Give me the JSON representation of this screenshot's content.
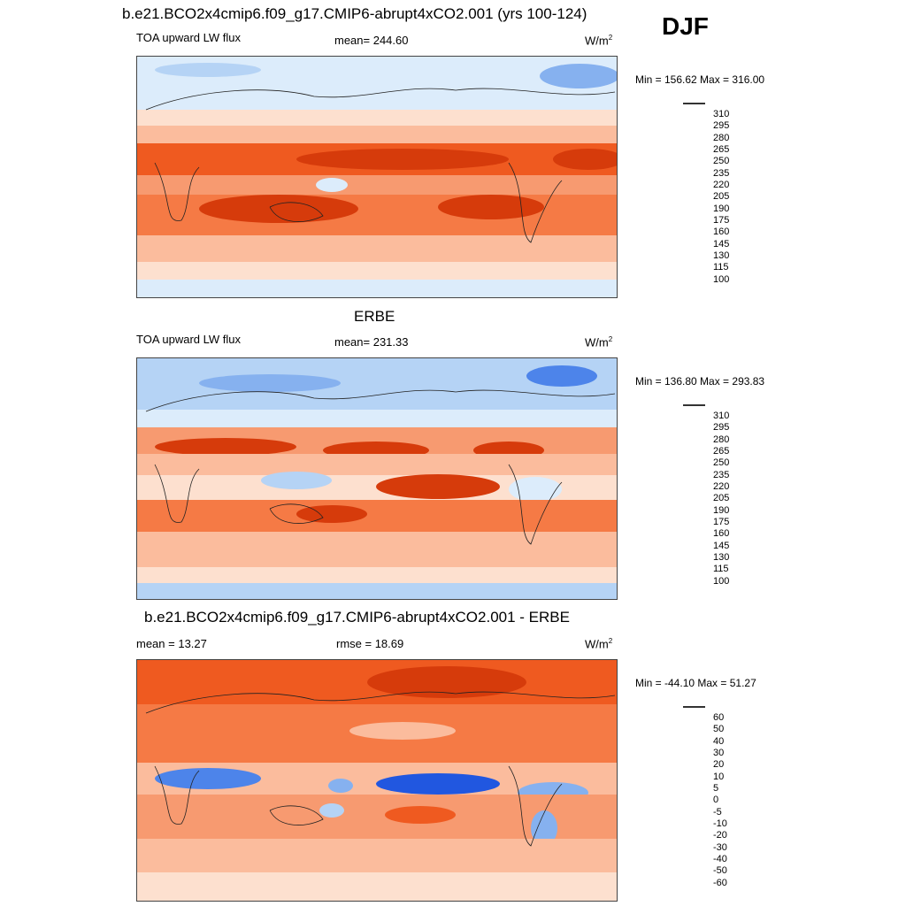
{
  "header": {
    "title": "b.e21.BCO2x4cmip6.f09_g17.CMIP6-abrupt4xCO2.001 (yrs 100-124)",
    "season": "DJF"
  },
  "panels": [
    {
      "id": "model",
      "title": "",
      "left_label": "TOA upward LW flux",
      "center_label": "mean= 244.60",
      "units": "W/m",
      "units_sup": "2",
      "minmax": "Min = 156.62 Max = 316.00",
      "levels": [
        "310",
        "295",
        "280",
        "265",
        "250",
        "235",
        "220",
        "205",
        "190",
        "175",
        "160",
        "145",
        "130",
        "115",
        "100"
      ]
    },
    {
      "id": "obs",
      "title": "ERBE",
      "left_label": "TOA upward LW flux",
      "center_label": "mean= 231.33",
      "units": "W/m",
      "units_sup": "2",
      "minmax": "Min = 136.80 Max = 293.83",
      "levels": [
        "310",
        "295",
        "280",
        "265",
        "250",
        "235",
        "220",
        "205",
        "190",
        "175",
        "160",
        "145",
        "130",
        "115",
        "100"
      ]
    },
    {
      "id": "diff",
      "title": "b.e21.BCO2x4cmip6.f09_g17.CMIP6-abrupt4xCO2.001 - ERBE",
      "left_label": "mean =  13.27",
      "center_label": "rmse =  18.69",
      "units": "W/m",
      "units_sup": "2",
      "minmax": "Min = -44.10 Max =  51.27",
      "levels": [
        "60",
        "50",
        "40",
        "30",
        "20",
        "10",
        "5",
        "0",
        "-5",
        "-10",
        "-20",
        "-30",
        "-40",
        "-50",
        "-60"
      ]
    }
  ],
  "colors": {
    "scale": [
      "#8b0000",
      "#b01d00",
      "#d63b0b",
      "#ef5a20",
      "#f57a45",
      "#f79a70",
      "#fbbc9d",
      "#fde0cf",
      "#dcecfb",
      "#b5d3f5",
      "#86b1ef",
      "#4d84ea",
      "#2157e0",
      "#0d2fc0",
      "#00168a",
      "#000f70"
    ]
  }
}
